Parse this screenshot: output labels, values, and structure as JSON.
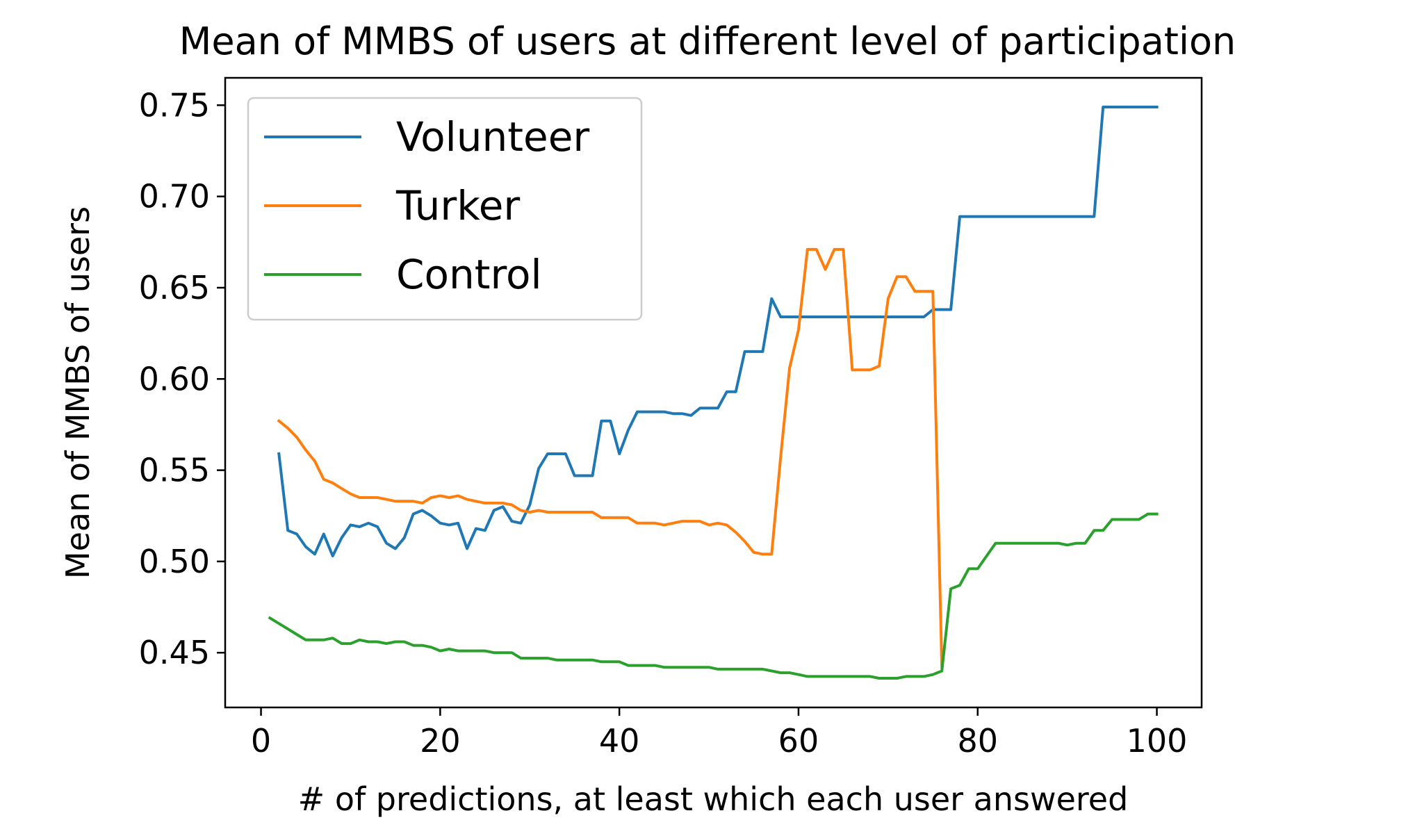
{
  "chart_data": {
    "type": "line",
    "title": "Mean of MMBS of users at different level of participation",
    "xlabel": "# of predictions, at least which each user answered",
    "ylabel": "Mean of MMBS of users",
    "xlim": [
      -4,
      105
    ],
    "ylim": [
      0.42,
      0.765
    ],
    "xticks": [
      0,
      20,
      40,
      60,
      80,
      100
    ],
    "xtick_labels": [
      "0",
      "20",
      "40",
      "60",
      "80",
      "100"
    ],
    "yticks": [
      0.45,
      0.5,
      0.55,
      0.6,
      0.65,
      0.7,
      0.75
    ],
    "ytick_labels": [
      "0.45",
      "0.50",
      "0.55",
      "0.60",
      "0.65",
      "0.70",
      "0.75"
    ],
    "grid": false,
    "legend_position": "upper-left",
    "series": [
      {
        "name": "Volunteer",
        "color": "#1f77b4",
        "x": [
          2,
          3,
          4,
          5,
          6,
          7,
          8,
          9,
          10,
          11,
          12,
          13,
          14,
          15,
          16,
          17,
          18,
          19,
          20,
          21,
          22,
          23,
          24,
          25,
          26,
          27,
          28,
          29,
          30,
          31,
          32,
          33,
          34,
          35,
          36,
          37,
          38,
          39,
          40,
          41,
          42,
          43,
          44,
          45,
          46,
          47,
          48,
          49,
          50,
          51,
          52,
          53,
          54,
          55,
          56,
          57,
          58,
          59,
          60,
          61,
          62,
          63,
          64,
          65,
          66,
          67,
          68,
          69,
          70,
          71,
          72,
          73,
          74,
          75,
          76,
          77,
          78,
          79,
          80,
          81,
          82,
          83,
          84,
          85,
          86,
          87,
          88,
          89,
          90,
          91,
          92,
          93,
          94,
          95,
          96,
          97,
          98,
          99,
          100
        ],
        "y": [
          0.559,
          0.517,
          0.515,
          0.508,
          0.504,
          0.515,
          0.503,
          0.513,
          0.52,
          0.519,
          0.521,
          0.519,
          0.51,
          0.507,
          0.513,
          0.526,
          0.528,
          0.525,
          0.521,
          0.52,
          0.521,
          0.507,
          0.518,
          0.517,
          0.528,
          0.53,
          0.522,
          0.521,
          0.531,
          0.551,
          0.559,
          0.559,
          0.559,
          0.547,
          0.547,
          0.547,
          0.577,
          0.577,
          0.559,
          0.572,
          0.582,
          0.582,
          0.582,
          0.582,
          0.581,
          0.581,
          0.58,
          0.584,
          0.584,
          0.584,
          0.593,
          0.593,
          0.615,
          0.615,
          0.615,
          0.644,
          0.634,
          0.634,
          0.634,
          0.634,
          0.634,
          0.634,
          0.634,
          0.634,
          0.634,
          0.634,
          0.634,
          0.634,
          0.634,
          0.634,
          0.634,
          0.634,
          0.634,
          0.638,
          0.638,
          0.638,
          0.689,
          0.689,
          0.689,
          0.689,
          0.689,
          0.689,
          0.689,
          0.689,
          0.689,
          0.689,
          0.689,
          0.689,
          0.689,
          0.689,
          0.689,
          0.689,
          0.749,
          0.749,
          0.749,
          0.749,
          0.749,
          0.749,
          0.749
        ]
      },
      {
        "name": "Turker",
        "color": "#ff7f0e",
        "x": [
          2,
          3,
          4,
          5,
          6,
          7,
          8,
          9,
          10,
          11,
          12,
          13,
          14,
          15,
          16,
          17,
          18,
          19,
          20,
          21,
          22,
          23,
          24,
          25,
          26,
          27,
          28,
          29,
          30,
          31,
          32,
          33,
          34,
          35,
          36,
          37,
          38,
          39,
          40,
          41,
          42,
          43,
          44,
          45,
          46,
          47,
          48,
          49,
          50,
          51,
          52,
          53,
          54,
          55,
          56,
          57,
          58,
          59,
          60,
          61,
          62,
          63,
          64,
          65,
          66,
          67,
          68,
          69,
          70,
          71,
          72,
          73,
          74,
          75,
          76
        ],
        "y": [
          0.577,
          0.573,
          0.568,
          0.561,
          0.555,
          0.545,
          0.543,
          0.54,
          0.537,
          0.535,
          0.535,
          0.535,
          0.534,
          0.533,
          0.533,
          0.533,
          0.532,
          0.535,
          0.536,
          0.535,
          0.536,
          0.534,
          0.533,
          0.532,
          0.532,
          0.532,
          0.531,
          0.528,
          0.527,
          0.528,
          0.527,
          0.527,
          0.527,
          0.527,
          0.527,
          0.527,
          0.524,
          0.524,
          0.524,
          0.524,
          0.521,
          0.521,
          0.521,
          0.52,
          0.521,
          0.522,
          0.522,
          0.522,
          0.52,
          0.521,
          0.52,
          0.516,
          0.511,
          0.505,
          0.504,
          0.504,
          0.557,
          0.606,
          0.627,
          0.671,
          0.671,
          0.66,
          0.671,
          0.671,
          0.605,
          0.605,
          0.605,
          0.607,
          0.644,
          0.656,
          0.656,
          0.648,
          0.648,
          0.648,
          0.442
        ]
      },
      {
        "name": "Control",
        "color": "#2ca02c",
        "x": [
          1,
          2,
          3,
          4,
          5,
          6,
          7,
          8,
          9,
          10,
          11,
          12,
          13,
          14,
          15,
          16,
          17,
          18,
          19,
          20,
          21,
          22,
          23,
          24,
          25,
          26,
          27,
          28,
          29,
          30,
          31,
          32,
          33,
          34,
          35,
          36,
          37,
          38,
          39,
          40,
          41,
          42,
          43,
          44,
          45,
          46,
          47,
          48,
          49,
          50,
          51,
          52,
          53,
          54,
          55,
          56,
          57,
          58,
          59,
          60,
          61,
          62,
          63,
          64,
          65,
          66,
          67,
          68,
          69,
          70,
          71,
          72,
          73,
          74,
          75,
          76,
          77,
          78,
          79,
          80,
          81,
          82,
          83,
          84,
          85,
          86,
          87,
          88,
          89,
          90,
          91,
          92,
          93,
          94,
          95,
          96,
          97,
          98,
          99,
          100
        ],
        "y": [
          0.469,
          0.466,
          0.463,
          0.46,
          0.457,
          0.457,
          0.457,
          0.458,
          0.455,
          0.455,
          0.457,
          0.456,
          0.456,
          0.455,
          0.456,
          0.456,
          0.454,
          0.454,
          0.453,
          0.451,
          0.452,
          0.451,
          0.451,
          0.451,
          0.451,
          0.45,
          0.45,
          0.45,
          0.447,
          0.447,
          0.447,
          0.447,
          0.446,
          0.446,
          0.446,
          0.446,
          0.446,
          0.445,
          0.445,
          0.445,
          0.443,
          0.443,
          0.443,
          0.443,
          0.442,
          0.442,
          0.442,
          0.442,
          0.442,
          0.442,
          0.441,
          0.441,
          0.441,
          0.441,
          0.441,
          0.441,
          0.44,
          0.439,
          0.439,
          0.438,
          0.437,
          0.437,
          0.437,
          0.437,
          0.437,
          0.437,
          0.437,
          0.437,
          0.436,
          0.436,
          0.436,
          0.437,
          0.437,
          0.437,
          0.438,
          0.44,
          0.485,
          0.487,
          0.496,
          0.496,
          0.503,
          0.51,
          0.51,
          0.51,
          0.51,
          0.51,
          0.51,
          0.51,
          0.51,
          0.509,
          0.51,
          0.51,
          0.517,
          0.517,
          0.523,
          0.523,
          0.523,
          0.523,
          0.526,
          0.526
        ]
      }
    ]
  }
}
